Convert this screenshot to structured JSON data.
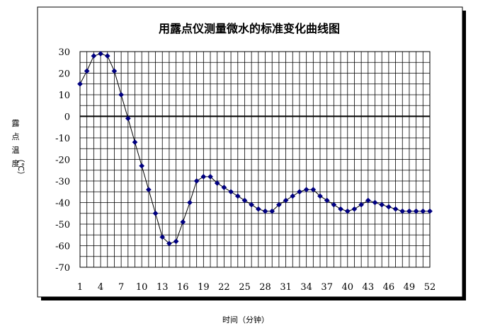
{
  "chart_data": {
    "type": "line",
    "title": "用露点仪测量微水的标准变化曲线图",
    "xlabel": "时间（分钟）",
    "ylabel_chars": [
      "露",
      "点",
      "温",
      "度"
    ],
    "ylabel_unit": "（℃）",
    "ylim": [
      -70,
      30
    ],
    "yticks": [
      30,
      20,
      10,
      0,
      -10,
      -20,
      -30,
      -40,
      -50,
      -60,
      -70
    ],
    "xlim": [
      1,
      52
    ],
    "xticks": [
      1,
      4,
      7,
      10,
      13,
      16,
      19,
      22,
      25,
      28,
      31,
      34,
      37,
      40,
      43,
      46,
      49,
      52
    ],
    "grid": true,
    "legend": "none",
    "series_color": "#000080",
    "x": [
      1,
      2,
      3,
      4,
      5,
      6,
      7,
      8,
      9,
      10,
      11,
      12,
      13,
      14,
      15,
      16,
      17,
      18,
      19,
      20,
      21,
      22,
      23,
      24,
      25,
      26,
      27,
      28,
      29,
      30,
      31,
      32,
      33,
      34,
      35,
      36,
      37,
      38,
      39,
      40,
      41,
      42,
      43,
      44,
      45,
      46,
      47,
      48,
      49,
      50,
      51,
      52
    ],
    "series": [
      {
        "values": [
          15,
          21,
          28,
          29,
          28,
          21,
          10,
          -1,
          -12,
          -23,
          -34,
          -45,
          -56,
          -59,
          -58,
          -49,
          -40,
          -30,
          -28,
          -28,
          -31,
          -33,
          -35,
          -37,
          -39,
          -41,
          -43,
          -44,
          -44,
          -41,
          -39,
          -37,
          -35,
          -34,
          -34,
          -37,
          -39,
          -41,
          -43,
          -44,
          -43,
          -41,
          -39,
          -40,
          -41,
          -42,
          -43,
          -44,
          -44,
          -44,
          -44,
          -44
        ]
      }
    ]
  }
}
